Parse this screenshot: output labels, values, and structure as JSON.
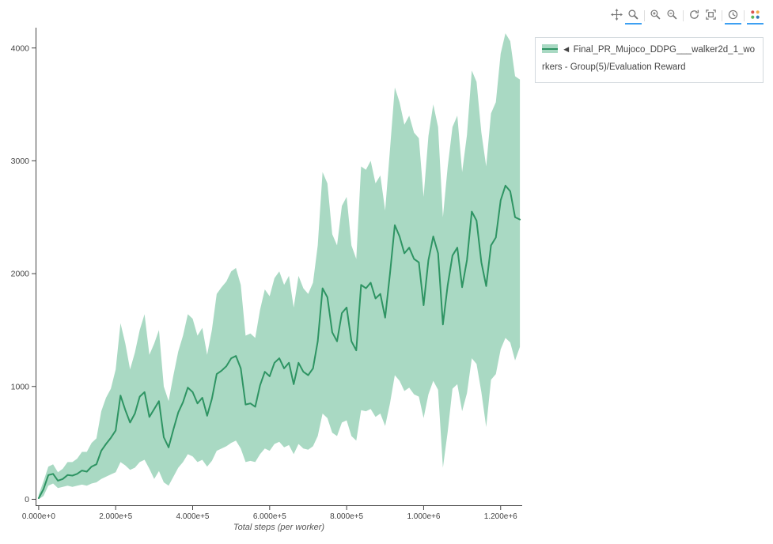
{
  "modebar": {
    "buttons": [
      {
        "name": "pan",
        "group": 0,
        "active": false
      },
      {
        "name": "box-zoom",
        "group": 0,
        "active": true
      },
      {
        "name": "zoom-in",
        "group": 1,
        "active": false
      },
      {
        "name": "zoom-out",
        "group": 1,
        "active": false
      },
      {
        "name": "autoscale",
        "group": 2,
        "active": false
      },
      {
        "name": "reset-axes",
        "group": 2,
        "active": false
      },
      {
        "name": "hover-compare",
        "group": 3,
        "active": true
      },
      {
        "name": "plotly-logo",
        "group": 4,
        "active": true
      }
    ]
  },
  "legend": {
    "label": "◄ Final_PR_Mujoco_DDPG___walker2d_1_workers - Group(5)/Evaluation Reward"
  },
  "chart_data": {
    "type": "line",
    "title": "",
    "xlabel": "Total steps (per worker)",
    "ylabel": "",
    "xlim": [
      -8000,
      1256000
    ],
    "ylim": [
      -60,
      4180
    ],
    "grid": false,
    "legend_position": "outside-top-right",
    "x_ticks": [
      {
        "v": 0,
        "label": "0.000e+0"
      },
      {
        "v": 200000,
        "label": "2.000e+5"
      },
      {
        "v": 400000,
        "label": "4.000e+5"
      },
      {
        "v": 600000,
        "label": "6.000e+5"
      },
      {
        "v": 800000,
        "label": "8.000e+5"
      },
      {
        "v": 1000000,
        "label": "1.000e+6"
      },
      {
        "v": 1200000,
        "label": "1.200e+6"
      }
    ],
    "y_ticks": [
      {
        "v": 0,
        "label": "0"
      },
      {
        "v": 1000,
        "label": "1000"
      },
      {
        "v": 2000,
        "label": "2000"
      },
      {
        "v": 3000,
        "label": "3000"
      },
      {
        "v": 4000,
        "label": "4000"
      }
    ],
    "series": [
      {
        "name": "Final_PR_Mujoco_DDPG___walker2d_1_workers - Group(5)/Evaluation Reward",
        "line_color": "#2e9463",
        "band_color": "#a9d9c3",
        "x": [
          0,
          12500,
          25000,
          37500,
          50000,
          62500,
          75000,
          87500,
          100000,
          112500,
          125000,
          137500,
          150000,
          162500,
          175000,
          187500,
          200000,
          212500,
          225000,
          237500,
          250000,
          262500,
          275000,
          287500,
          300000,
          312500,
          325000,
          337500,
          350000,
          362500,
          375000,
          387500,
          400000,
          412500,
          425000,
          437500,
          450000,
          462500,
          475000,
          487500,
          500000,
          512500,
          525000,
          537500,
          550000,
          562500,
          575000,
          587500,
          600000,
          612500,
          625000,
          637500,
          650000,
          662500,
          675000,
          687500,
          700000,
          712500,
          725000,
          737500,
          750000,
          762500,
          775000,
          787500,
          800000,
          812500,
          825000,
          837500,
          850000,
          862500,
          875000,
          887500,
          900000,
          912500,
          925000,
          937500,
          950000,
          962500,
          975000,
          987500,
          1000000,
          1012500,
          1025000,
          1037500,
          1050000,
          1062500,
          1075000,
          1087500,
          1100000,
          1112500,
          1125000,
          1137500,
          1150000,
          1162500,
          1175000,
          1187500,
          1200000,
          1212500,
          1225000,
          1237500,
          1250000
        ],
        "mean": [
          10,
          90,
          215,
          225,
          165,
          180,
          215,
          210,
          225,
          255,
          245,
          290,
          310,
          430,
          490,
          545,
          610,
          920,
          790,
          680,
          760,
          910,
          950,
          730,
          800,
          870,
          550,
          460,
          620,
          770,
          860,
          990,
          950,
          850,
          900,
          740,
          890,
          1110,
          1140,
          1180,
          1250,
          1270,
          1160,
          840,
          850,
          820,
          1010,
          1130,
          1090,
          1210,
          1250,
          1160,
          1210,
          1020,
          1210,
          1130,
          1100,
          1160,
          1400,
          1870,
          1790,
          1480,
          1400,
          1650,
          1700,
          1400,
          1320,
          1900,
          1870,
          1920,
          1780,
          1820,
          1610,
          2000,
          2430,
          2330,
          2180,
          2230,
          2130,
          2100,
          1720,
          2120,
          2330,
          2180,
          1550,
          1900,
          2160,
          2230,
          1880,
          2120,
          2550,
          2470,
          2100,
          1890,
          2250,
          2320,
          2650,
          2780,
          2730,
          2500,
          2480
        ],
        "upper": [
          40,
          160,
          290,
          310,
          240,
          270,
          330,
          330,
          360,
          420,
          420,
          500,
          540,
          780,
          900,
          980,
          1150,
          1560,
          1380,
          1150,
          1300,
          1500,
          1640,
          1280,
          1380,
          1500,
          1000,
          870,
          1100,
          1310,
          1450,
          1640,
          1600,
          1450,
          1520,
          1280,
          1500,
          1820,
          1880,
          1930,
          2020,
          2050,
          1900,
          1450,
          1470,
          1430,
          1680,
          1860,
          1800,
          1960,
          2020,
          1900,
          1980,
          1700,
          1980,
          1870,
          1820,
          1920,
          2250,
          2900,
          2800,
          2350,
          2250,
          2600,
          2680,
          2250,
          2130,
          2950,
          2920,
          3000,
          2800,
          2870,
          2560,
          3100,
          3650,
          3520,
          3320,
          3400,
          3250,
          3200,
          2680,
          3220,
          3500,
          3300,
          2500,
          2950,
          3300,
          3400,
          2900,
          3230,
          3800,
          3700,
          3250,
          2950,
          3420,
          3520,
          3950,
          4130,
          4060,
          3750,
          3720
        ],
        "lower": [
          0,
          30,
          120,
          140,
          100,
          110,
          120,
          110,
          120,
          130,
          120,
          140,
          150,
          180,
          200,
          220,
          240,
          330,
          300,
          260,
          280,
          330,
          350,
          270,
          180,
          250,
          150,
          120,
          200,
          280,
          330,
          400,
          380,
          330,
          350,
          290,
          340,
          430,
          450,
          470,
          500,
          520,
          450,
          330,
          340,
          330,
          400,
          450,
          430,
          490,
          510,
          460,
          480,
          400,
          490,
          450,
          440,
          470,
          560,
          760,
          720,
          590,
          560,
          680,
          700,
          560,
          520,
          790,
          780,
          800,
          730,
          760,
          650,
          850,
          1100,
          1050,
          960,
          990,
          930,
          910,
          720,
          930,
          1050,
          970,
          280,
          600,
          980,
          1020,
          780,
          940,
          1250,
          1200,
          950,
          640,
          1060,
          1110,
          1330,
          1430,
          1390,
          1230,
          1350
        ]
      }
    ]
  }
}
